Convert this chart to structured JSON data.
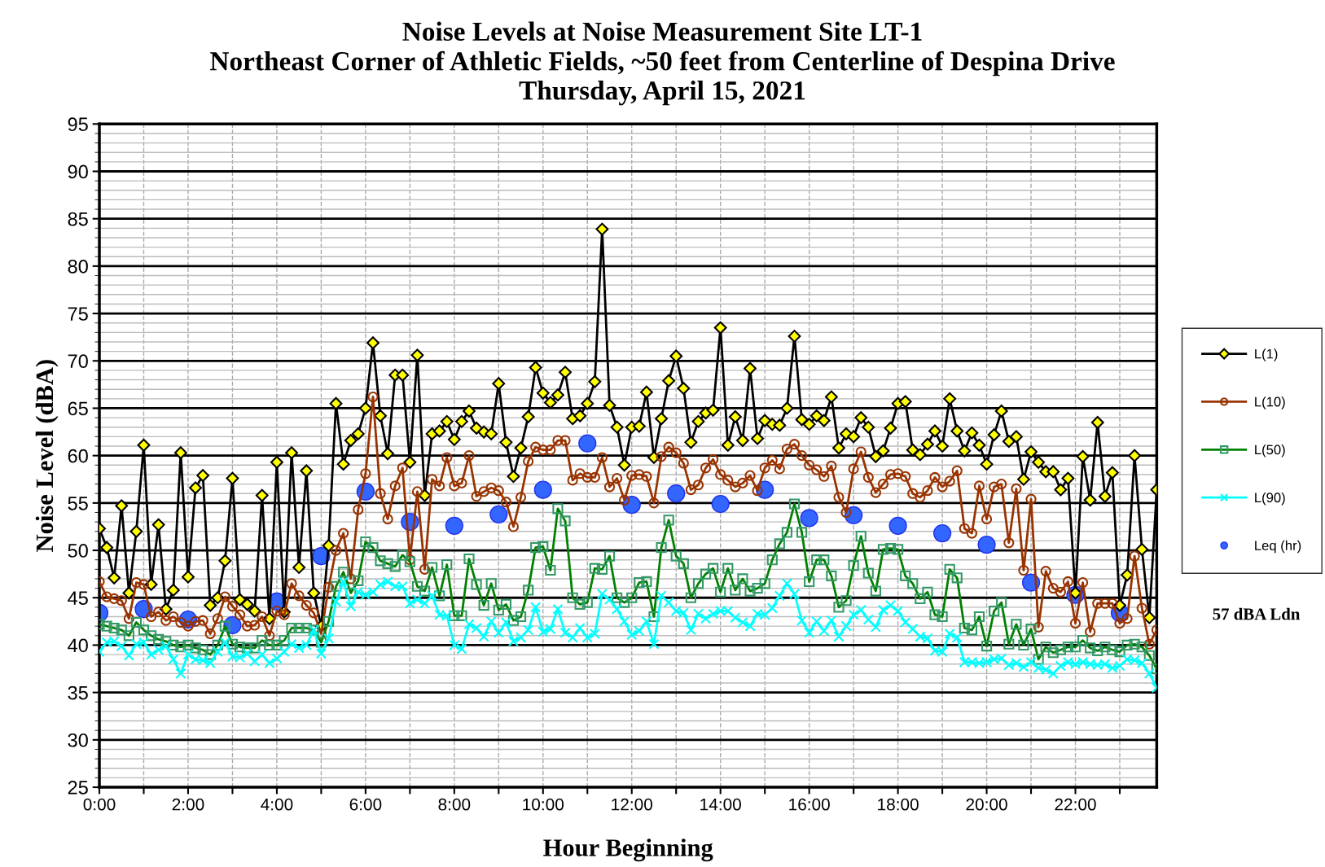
{
  "chart_data": {
    "type": "line",
    "title": "Noise Levels at Noise Measurement Site LT-1",
    "subtitle": "Northeast Corner of Athletic Fields, ~50 feet from Centerline of Despina Drive\nThursday, April 15, 2021",
    "xlabel": "Hour Beginning",
    "ylabel": "Noise Level (dBA)",
    "annotations": [
      "57 dBA Ldn"
    ],
    "x": [
      0,
      0.167,
      0.333,
      0.5,
      0.667,
      0.833,
      1,
      1.167,
      1.333,
      1.5,
      1.667,
      1.833,
      2,
      2.167,
      2.333,
      2.5,
      2.667,
      2.833,
      3,
      3.167,
      3.333,
      3.5,
      3.667,
      3.833,
      4,
      4.167,
      4.333,
      4.5,
      4.667,
      4.833,
      5,
      5.167,
      5.333,
      5.5,
      5.667,
      5.833,
      6,
      6.167,
      6.333,
      6.5,
      6.667,
      6.833,
      7,
      7.167,
      7.333,
      7.5,
      7.667,
      7.833,
      8,
      8.167,
      8.333,
      8.5,
      8.667,
      8.833,
      9,
      9.167,
      9.333,
      9.5,
      9.667,
      9.833,
      10,
      10.167,
      10.333,
      10.5,
      10.667,
      10.833,
      11,
      11.167,
      11.333,
      11.5,
      11.667,
      11.833,
      12,
      12.167,
      12.333,
      12.5,
      12.667,
      12.833,
      13,
      13.167,
      13.333,
      13.5,
      13.667,
      13.833,
      14,
      14.167,
      14.333,
      14.5,
      14.667,
      14.833,
      15,
      15.167,
      15.333,
      15.5,
      15.667,
      15.833,
      16,
      16.167,
      16.333,
      16.5,
      16.667,
      16.833,
      17,
      17.167,
      17.333,
      17.5,
      17.667,
      17.833,
      18,
      18.167,
      18.333,
      18.5,
      18.667,
      18.833,
      19,
      19.167,
      19.333,
      19.5,
      19.667,
      19.833,
      20,
      20.167,
      20.333,
      20.5,
      20.667,
      20.833,
      21,
      21.167,
      21.333,
      21.5,
      21.667,
      21.833,
      22,
      22.167,
      22.333,
      22.5,
      22.667,
      22.833,
      23,
      23.167,
      23.333,
      23.5,
      23.667,
      23.833
    ],
    "series": [
      {
        "name": "L(1)",
        "color": "#000000",
        "marker": "diamond",
        "values": [
          52.3,
          50.3,
          47.1,
          54.7,
          45.5,
          52.0,
          61.1,
          46.4,
          52.7,
          43.8,
          45.8,
          60.3,
          47.2,
          56.6,
          57.9,
          44.2,
          45.0,
          48.9,
          57.6,
          44.8,
          44.3,
          43.6,
          55.8,
          42.8,
          59.3,
          43.5,
          60.3,
          48.2,
          58.4,
          45.5,
          42.0,
          50.5,
          65.5,
          59.1,
          61.6,
          62.3,
          65.0,
          71.9,
          64.2,
          60.2,
          68.5,
          68.5,
          59.3,
          70.6,
          55.8,
          62.3,
          62.6,
          63.6,
          61.7,
          63.6,
          64.7,
          62.9,
          62.5,
          62.3,
          67.6,
          61.4,
          57.8,
          60.8,
          64.1,
          69.3,
          66.6,
          65.6,
          66.4,
          68.8,
          63.9,
          64.2,
          65.5,
          67.8,
          83.9,
          65.3,
          63.0,
          59.0,
          63.0,
          63.1,
          66.7,
          59.8,
          63.9,
          67.9,
          70.5,
          67.1,
          61.4,
          63.6,
          64.5,
          64.8,
          73.5,
          61.1,
          64.1,
          61.6,
          69.2,
          61.8,
          63.7,
          63.3,
          63.2,
          65.0,
          72.6,
          63.8,
          63.3,
          64.2,
          63.7,
          66.2,
          60.8,
          62.3,
          62.0,
          64.0,
          63.0,
          59.9,
          60.5,
          62.9,
          65.5,
          65.7,
          60.6,
          60.1,
          61.2,
          62.6,
          61.0,
          66.0,
          62.6,
          60.5,
          62.4,
          61.1,
          59.1,
          62.2,
          64.7,
          61.5,
          62.0,
          57.5,
          60.4,
          59.3,
          58.3,
          58.3,
          56.4,
          57.6,
          45.5,
          59.9,
          55.3,
          63.5,
          55.7,
          58.2,
          44.2,
          47.4,
          60.0,
          50.1,
          42.9,
          56.4
        ]
      },
      {
        "name": "L(10)",
        "color": "#993300",
        "marker": "circle",
        "values": [
          46.7,
          45.1,
          44.9,
          44.7,
          42.8,
          46.6,
          46.4,
          43.0,
          43.5,
          42.6,
          43.0,
          42.4,
          42.0,
          42.5,
          42.6,
          41.2,
          42.8,
          45.1,
          44.1,
          43.2,
          42.0,
          42.1,
          43.0,
          41.0,
          43.6,
          43.2,
          46.5,
          45.2,
          44.2,
          43.4,
          41.2,
          46.1,
          50.0,
          51.8,
          47.0,
          54.3,
          58.1,
          66.2,
          56.0,
          53.3,
          56.8,
          58.7,
          49.0,
          56.2,
          48.0,
          57.5,
          56.8,
          59.8,
          56.8,
          57.1,
          60.0,
          55.7,
          56.2,
          56.6,
          56.3,
          55.1,
          52.5,
          55.6,
          59.4,
          60.9,
          60.6,
          60.6,
          61.6,
          61.6,
          57.4,
          58.1,
          57.7,
          57.7,
          59.8,
          56.7,
          57.6,
          55.3,
          57.9,
          58.0,
          57.8,
          55.0,
          59.9,
          60.9,
          60.3,
          59.2,
          56.4,
          56.9,
          58.7,
          59.6,
          58.0,
          57.4,
          56.7,
          57.1,
          57.9,
          56.3,
          58.7,
          59.5,
          58.6,
          60.7,
          61.2,
          60.0,
          59.0,
          58.5,
          57.8,
          58.9,
          55.6,
          54.0,
          58.6,
          60.4,
          57.7,
          56.1,
          57.0,
          58.0,
          58.1,
          57.8,
          56.0,
          55.6,
          56.3,
          57.7,
          56.7,
          57.3,
          58.4,
          52.3,
          51.8,
          56.8,
          53.3,
          56.7,
          57.0,
          50.8,
          56.5,
          47.9,
          55.4,
          41.9,
          47.8,
          46.0,
          45.6,
          46.7,
          42.3,
          46.6,
          41.4,
          44.4,
          44.4,
          44.4,
          42.3,
          42.8,
          49.4,
          43.9,
          40.1,
          41.6
        ]
      },
      {
        "name": "L(50)",
        "color": "#008000",
        "marker": "square",
        "values": [
          42.2,
          42.0,
          41.8,
          41.6,
          41.0,
          42.4,
          41.6,
          41.0,
          40.6,
          40.4,
          40.0,
          39.8,
          40.0,
          39.7,
          39.5,
          39.0,
          40.0,
          42.0,
          40.1,
          39.8,
          39.7,
          39.7,
          40.5,
          40.0,
          40.0,
          40.5,
          41.8,
          41.8,
          41.8,
          41.6,
          40.3,
          42.5,
          46.2,
          47.7,
          45.5,
          46.8,
          50.9,
          50.3,
          48.9,
          48.6,
          48.3,
          49.5,
          48.8,
          46.2,
          45.7,
          48.2,
          45.2,
          48.5,
          43.1,
          43.1,
          49.1,
          46.4,
          44.2,
          46.5,
          43.7,
          44.3,
          42.6,
          43.0,
          45.8,
          50.3,
          50.4,
          47.9,
          54.4,
          53.1,
          45.0,
          44.3,
          44.5,
          48.1,
          48.0,
          49.4,
          45.0,
          44.5,
          45.0,
          46.6,
          46.7,
          43.0,
          50.3,
          53.2,
          49.4,
          48.6,
          45.0,
          46.5,
          47.5,
          48.1,
          45.6,
          48.1,
          45.8,
          47.0,
          45.7,
          46.0,
          46.5,
          49.0,
          50.7,
          51.9,
          54.9,
          51.9,
          46.7,
          49.0,
          49.0,
          47.3,
          44.0,
          44.7,
          48.4,
          51.5,
          47.6,
          45.7,
          50.1,
          50.2,
          50.1,
          47.3,
          46.5,
          44.9,
          45.6,
          43.2,
          43.0,
          48.0,
          47.1,
          41.8,
          41.6,
          43.0,
          39.9,
          43.6,
          44.5,
          40.1,
          42.2,
          40.0,
          41.7,
          38.5,
          39.8,
          39.2,
          39.5,
          39.8,
          39.8,
          40.5,
          39.7,
          39.4,
          39.8,
          39.5,
          39.3,
          40.0,
          40.1,
          39.8,
          38.9,
          37.5
        ]
      },
      {
        "name": "L(90)",
        "color": "#00ffff",
        "marker": "cross",
        "values": [
          39.3,
          40.3,
          40.4,
          39.9,
          38.9,
          40.1,
          40.3,
          39.0,
          39.5,
          39.9,
          38.5,
          37.0,
          39.0,
          38.5,
          38.4,
          38.1,
          39.3,
          40.3,
          38.8,
          38.7,
          39.1,
          38.3,
          39.0,
          38.1,
          38.6,
          39.3,
          40.1,
          39.7,
          40.0,
          41.6,
          39.1,
          40.7,
          44.6,
          46.7,
          44.1,
          45.6,
          45.3,
          45.6,
          46.4,
          46.7,
          46.2,
          46.2,
          44.4,
          44.8,
          44.4,
          45.2,
          43.2,
          43.1,
          40.0,
          39.6,
          42.2,
          41.8,
          40.9,
          42.5,
          41.3,
          42.4,
          40.4,
          40.8,
          41.6,
          44.0,
          41.4,
          41.7,
          43.8,
          41.3,
          40.8,
          41.8,
          40.8,
          41.2,
          45.4,
          44.8,
          43.8,
          42.5,
          41.1,
          41.5,
          42.5,
          40.1,
          45.2,
          44.5,
          43.6,
          43.4,
          41.6,
          43.3,
          42.8,
          43.3,
          43.6,
          43.6,
          42.9,
          42.4,
          42.0,
          43.3,
          43.2,
          43.9,
          45.2,
          46.5,
          45.4,
          42.6,
          41.3,
          42.5,
          41.5,
          42.6,
          40.9,
          42.0,
          43.2,
          43.7,
          42.7,
          41.9,
          43.7,
          44.2,
          43.6,
          42.4,
          41.7,
          40.9,
          40.7,
          39.4,
          39.3,
          41.2,
          40.8,
          38.2,
          38.2,
          38.1,
          38.2,
          38.5,
          38.6,
          37.9,
          38.1,
          37.7,
          38.2,
          37.6,
          37.4,
          37.0,
          37.8,
          38.2,
          38.0,
          38.2,
          38.0,
          37.9,
          38.0,
          37.6,
          37.8,
          38.5,
          38.4,
          38.1,
          37.0,
          35.5
        ]
      },
      {
        "name": "Leq (hr)",
        "type": "scatter",
        "color": "#3366ff",
        "marker": "circle",
        "x": [
          0,
          1,
          2,
          3,
          4,
          5,
          6,
          7,
          8,
          9,
          10,
          11,
          12,
          13,
          14,
          15,
          16,
          17,
          18,
          19,
          20,
          21,
          22,
          23
        ],
        "values": [
          43.4,
          43.8,
          42.7,
          42.1,
          44.6,
          49.4,
          56.2,
          53.0,
          52.6,
          53.8,
          56.4,
          61.3,
          54.8,
          56.0,
          54.9,
          56.4,
          53.4,
          53.7,
          52.6,
          51.8,
          50.6,
          46.6,
          45.3,
          43.4
        ]
      }
    ],
    "xlim": [
      0,
      23.833
    ],
    "xticks": [
      {
        "value": 0,
        "label": "0:00"
      },
      {
        "value": 1,
        "label": null
      },
      {
        "value": 2,
        "label": "2:00"
      },
      {
        "value": 3,
        "label": null
      },
      {
        "value": 4,
        "label": "4:00"
      },
      {
        "value": 5,
        "label": null
      },
      {
        "value": 6,
        "label": "6:00"
      },
      {
        "value": 7,
        "label": null
      },
      {
        "value": 8,
        "label": "8:00"
      },
      {
        "value": 9,
        "label": null
      },
      {
        "value": 10,
        "label": "10:00"
      },
      {
        "value": 11,
        "label": null
      },
      {
        "value": 12,
        "label": "12:00"
      },
      {
        "value": 13,
        "label": null
      },
      {
        "value": 14,
        "label": "14:00"
      },
      {
        "value": 15,
        "label": null
      },
      {
        "value": 16,
        "label": "16:00"
      },
      {
        "value": 17,
        "label": null
      },
      {
        "value": 18,
        "label": "18:00"
      },
      {
        "value": 19,
        "label": null
      },
      {
        "value": 20,
        "label": "20:00"
      },
      {
        "value": 21,
        "label": null
      },
      {
        "value": 22,
        "label": "22:00"
      },
      {
        "value": 23,
        "label": null
      }
    ],
    "ylim": [
      25,
      95
    ],
    "yticks": [
      25,
      30,
      35,
      40,
      45,
      50,
      55,
      60,
      65,
      70,
      75,
      80,
      85,
      90,
      95
    ],
    "grid": true,
    "legend": "right",
    "line_style": "solid"
  }
}
